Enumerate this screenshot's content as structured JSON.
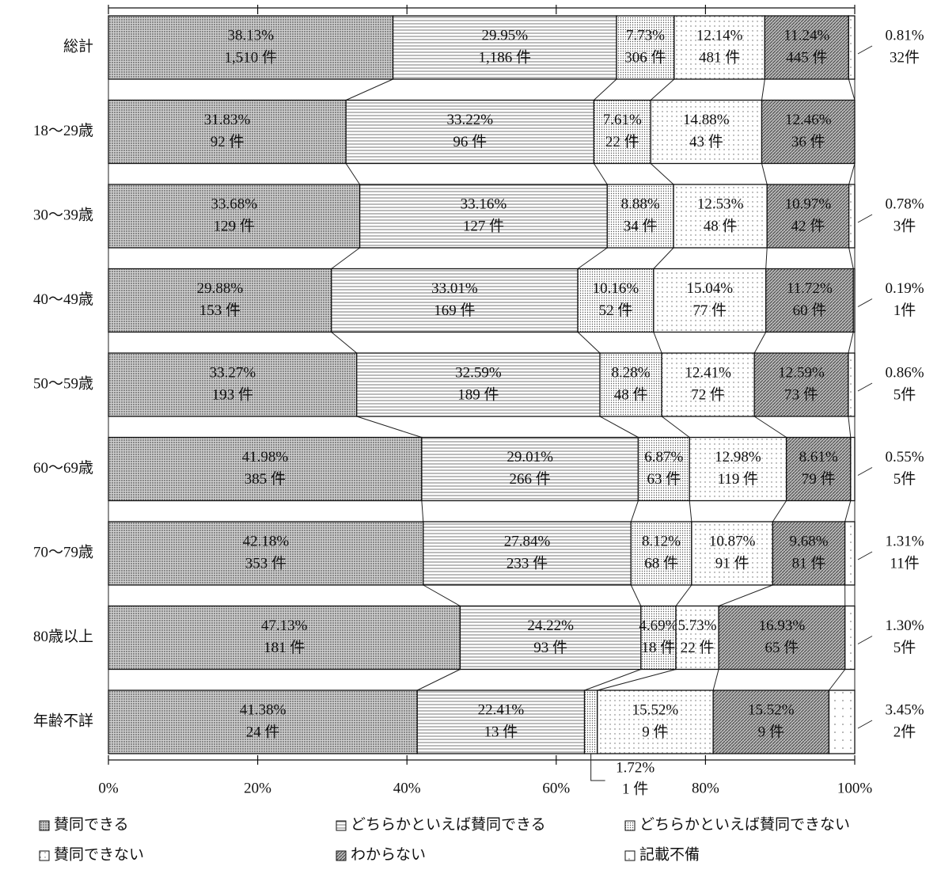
{
  "chart_data": {
    "type": "stacked-bar-100",
    "orientation": "horizontal",
    "categories": [
      "総計",
      "18～29歳",
      "30～39歳",
      "40～49歳",
      "50～59歳",
      "60～69歳",
      "70～79歳",
      "80歳以上",
      "年齢不詳"
    ],
    "xlim": [
      0,
      100
    ],
    "xticks": [
      {
        "value": 0,
        "label": "0%"
      },
      {
        "value": 20,
        "label": "20%"
      },
      {
        "value": 40,
        "label": "40%"
      },
      {
        "value": 60,
        "label": "60%"
      },
      {
        "value": 80,
        "label": "80%"
      },
      {
        "value": 100,
        "label": "100%"
      }
    ],
    "series": [
      {
        "name": "賛同できる",
        "color": "#c4c4c4",
        "pattern": "pat-dense",
        "values": [
          38.13,
          31.83,
          33.68,
          29.88,
          33.27,
          41.98,
          42.18,
          47.13,
          41.38
        ],
        "value_labels": [
          "38.13%",
          "31.83%",
          "33.68%",
          "29.88%",
          "33.27%",
          "41.98%",
          "42.18%",
          "47.13%",
          "41.38%"
        ],
        "counts": [
          1510,
          92,
          129,
          153,
          193,
          385,
          353,
          181,
          24
        ],
        "count_labels": [
          "1,510 件",
          "92 件",
          "129 件",
          "153 件",
          "193 件",
          "385 件",
          "353 件",
          "181 件",
          "24 件"
        ]
      },
      {
        "name": "どちらかといえば賛同できる",
        "color": "#ffffff",
        "pattern": "pat-hlines",
        "values": [
          29.95,
          33.22,
          33.16,
          33.01,
          32.59,
          29.01,
          27.84,
          24.22,
          22.41
        ],
        "value_labels": [
          "29.95%",
          "33.22%",
          "33.16%",
          "33.01%",
          "32.59%",
          "29.01%",
          "27.84%",
          "24.22%",
          "22.41%"
        ],
        "counts": [
          1186,
          96,
          127,
          169,
          189,
          266,
          233,
          93,
          13
        ],
        "count_labels": [
          "1,186 件",
          "96 件",
          "127 件",
          "169 件",
          "189 件",
          "266 件",
          "233 件",
          "93 件",
          "13 件"
        ]
      },
      {
        "name": "どちらかといえば賛同できない",
        "color": "#e6e6e6",
        "pattern": "pat-fine",
        "values": [
          7.73,
          7.61,
          8.88,
          10.16,
          8.28,
          6.87,
          8.12,
          4.69,
          1.72
        ],
        "value_labels": [
          "7.73%",
          "7.61%",
          "8.88%",
          "10.16%",
          "8.28%",
          "6.87%",
          "8.12%",
          "4.69%",
          "1.72%"
        ],
        "counts": [
          306,
          22,
          34,
          52,
          48,
          63,
          68,
          18,
          1
        ],
        "count_labels": [
          "306 件",
          "22 件",
          "34 件",
          "52 件",
          "48 件",
          "63 件",
          "68 件",
          "18 件",
          "1 件"
        ]
      },
      {
        "name": "賛同できない",
        "color": "#f6f6f6",
        "pattern": "pat-sparse",
        "values": [
          12.14,
          14.88,
          12.53,
          15.04,
          12.41,
          12.98,
          10.87,
          5.73,
          15.52
        ],
        "value_labels": [
          "12.14%",
          "14.88%",
          "12.53%",
          "15.04%",
          "12.41%",
          "12.98%",
          "10.87%",
          "5.73%",
          "15.52%"
        ],
        "counts": [
          481,
          43,
          48,
          77,
          72,
          119,
          91,
          22,
          9
        ],
        "count_labels": [
          "481 件",
          "43 件",
          "48 件",
          "77 件",
          "72 件",
          "119 件",
          "91 件",
          "22 件",
          "9 件"
        ]
      },
      {
        "name": "わからない",
        "color": "#a8a8a8",
        "pattern": "pat-diag",
        "values": [
          11.24,
          12.46,
          10.97,
          11.72,
          12.59,
          8.61,
          9.68,
          16.93,
          15.52
        ],
        "value_labels": [
          "11.24%",
          "12.46%",
          "10.97%",
          "11.72%",
          "12.59%",
          "8.61%",
          "9.68%",
          "16.93%",
          "15.52%"
        ],
        "counts": [
          445,
          36,
          42,
          60,
          73,
          79,
          81,
          65,
          9
        ],
        "count_labels": [
          "445 件",
          "36 件",
          "42 件",
          "60 件",
          "73 件",
          "79 件",
          "81 件",
          "65 件",
          "9 件"
        ]
      },
      {
        "name": "記載不備",
        "color": "#ffffff",
        "pattern": "pat-vsparse",
        "values": [
          0.81,
          0,
          0.78,
          0.19,
          0.86,
          0.55,
          1.31,
          1.3,
          3.45
        ],
        "value_labels": [
          "0.81%",
          null,
          "0.78%",
          "0.19%",
          "0.86%",
          "0.55%",
          "1.31%",
          "1.30%",
          "3.45%"
        ],
        "counts": [
          32,
          null,
          3,
          1,
          5,
          5,
          11,
          5,
          2
        ],
        "count_labels": [
          "32件",
          null,
          "3件",
          "1件",
          "5件",
          "5件",
          "11件",
          "5件",
          "2件"
        ]
      }
    ]
  }
}
